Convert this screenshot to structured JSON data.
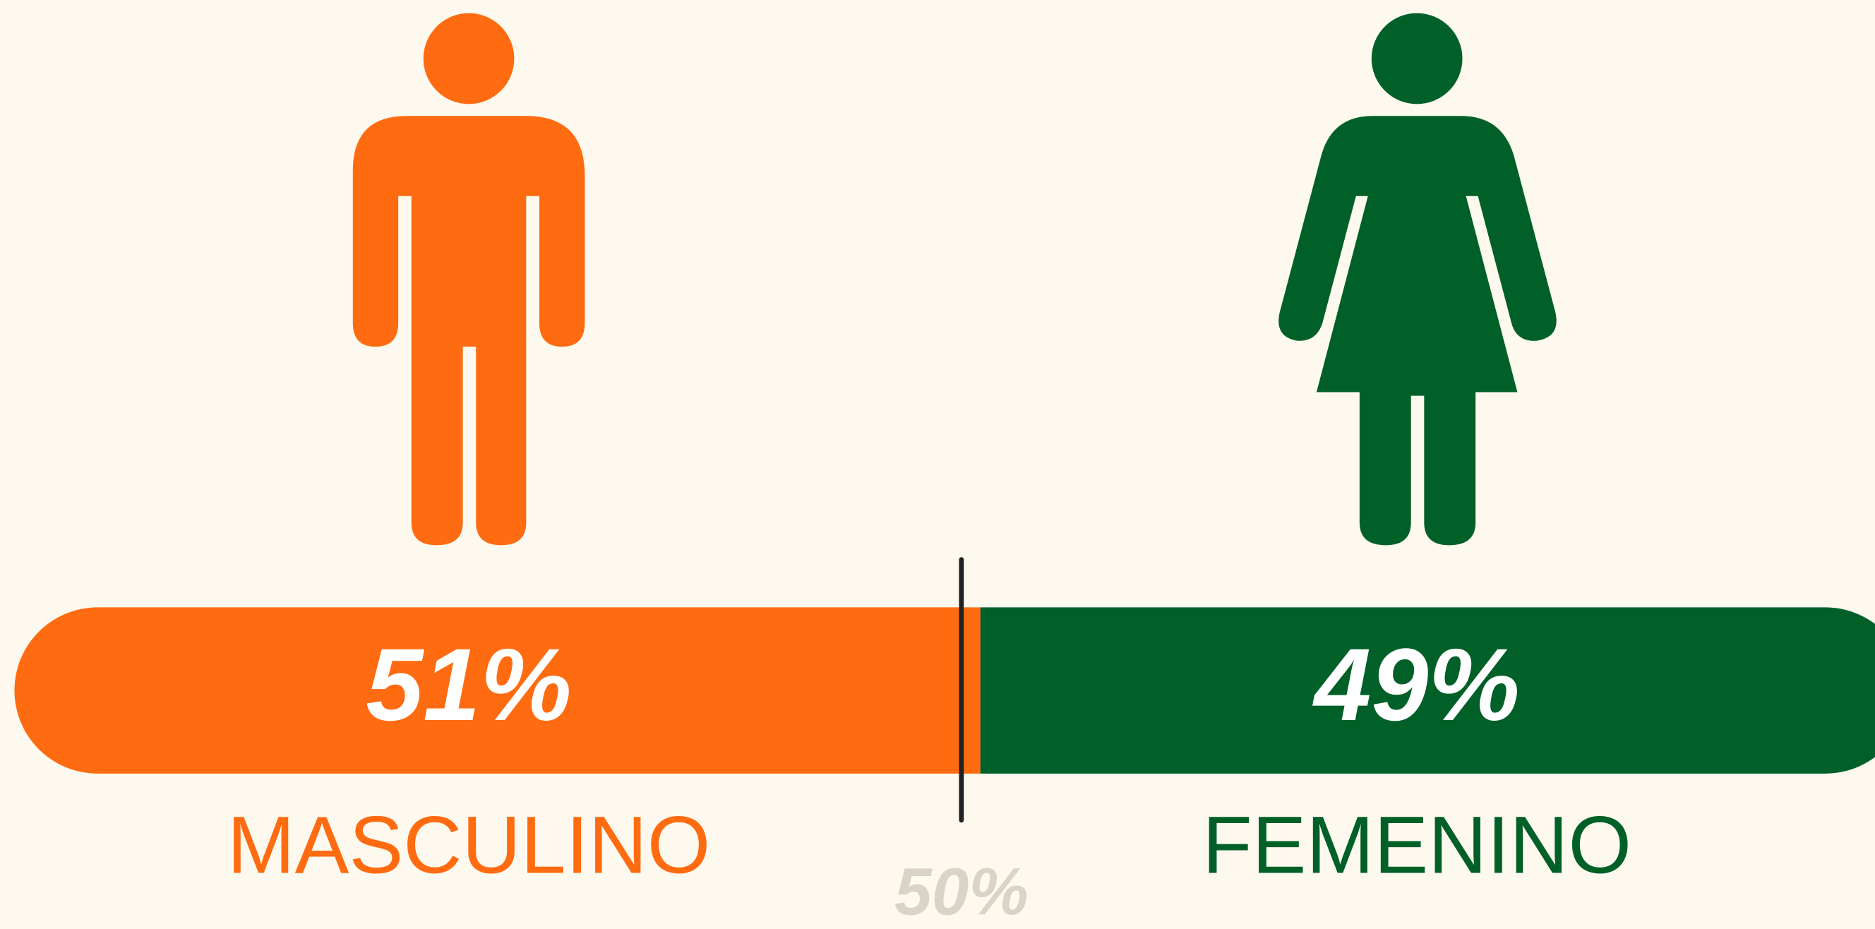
{
  "chart_data": {
    "type": "bar",
    "orientation": "horizontal",
    "stacked": true,
    "categories": [
      null
    ],
    "xlim": [
      0,
      100
    ],
    "series": [
      {
        "name": "MASCULINO",
        "color": "#ff6b10",
        "values": [
          51
        ],
        "value_labels": [
          "51%"
        ]
      },
      {
        "name": "FEMENINO",
        "color": "#006028",
        "values": [
          49
        ],
        "value_labels": [
          "49%"
        ]
      }
    ],
    "reference_line": {
      "value": 50,
      "label": "50%",
      "color": "#222222"
    }
  }
}
